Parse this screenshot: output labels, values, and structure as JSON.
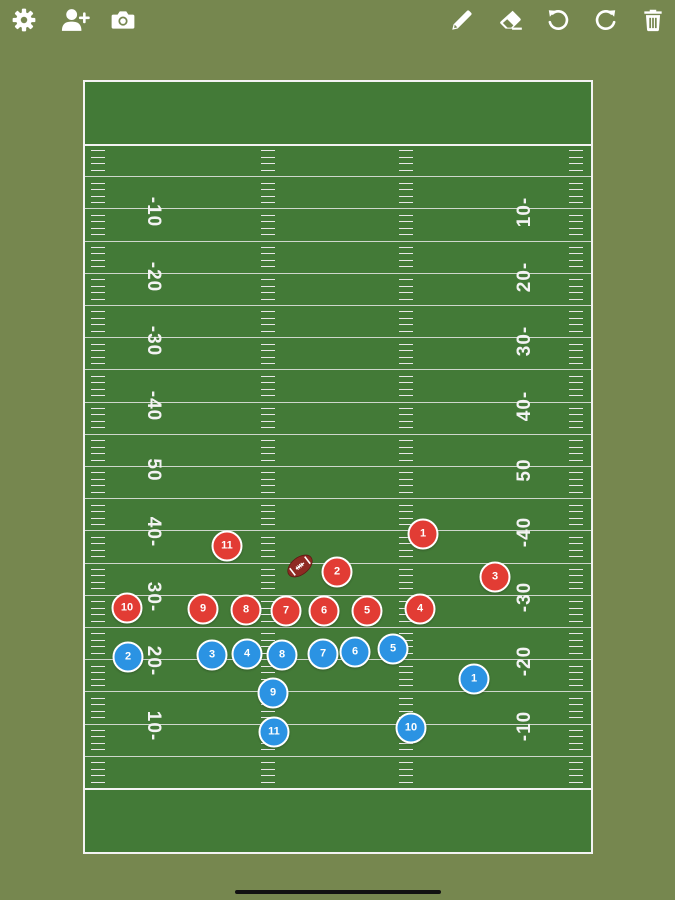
{
  "toolbar": {
    "left": [
      "gear-icon",
      "add-user-icon",
      "camera-icon"
    ],
    "right": [
      "pencil-icon",
      "eraser-icon",
      "undo-icon",
      "redo-icon",
      "trash-icon"
    ],
    "icon_color": "#ffffff"
  },
  "field": {
    "grass_color": "#437a37",
    "line_color": "#f3f3f3",
    "yard_numbers": {
      "left_top": [
        "-10",
        "-20",
        "-30",
        "-40",
        "50"
      ],
      "right_top": [
        "10-",
        "20-",
        "30-",
        "40-",
        "50"
      ],
      "left_bottom": [
        "40-",
        "30-",
        "20-",
        "10-"
      ],
      "right_bottom": [
        "-40",
        "-30",
        "-20",
        "-10"
      ]
    }
  },
  "players": {
    "red_color": "#e23c34",
    "blue_color": "#2b93e3",
    "red": [
      "11",
      "1",
      "2",
      "3",
      "10",
      "9",
      "8",
      "7",
      "6",
      "5",
      "4"
    ],
    "blue": [
      "2",
      "3",
      "4",
      "8",
      "7",
      "6",
      "5",
      "1",
      "9",
      "11",
      "10"
    ]
  },
  "football": {
    "color": "#8e2a22",
    "label": "football"
  }
}
